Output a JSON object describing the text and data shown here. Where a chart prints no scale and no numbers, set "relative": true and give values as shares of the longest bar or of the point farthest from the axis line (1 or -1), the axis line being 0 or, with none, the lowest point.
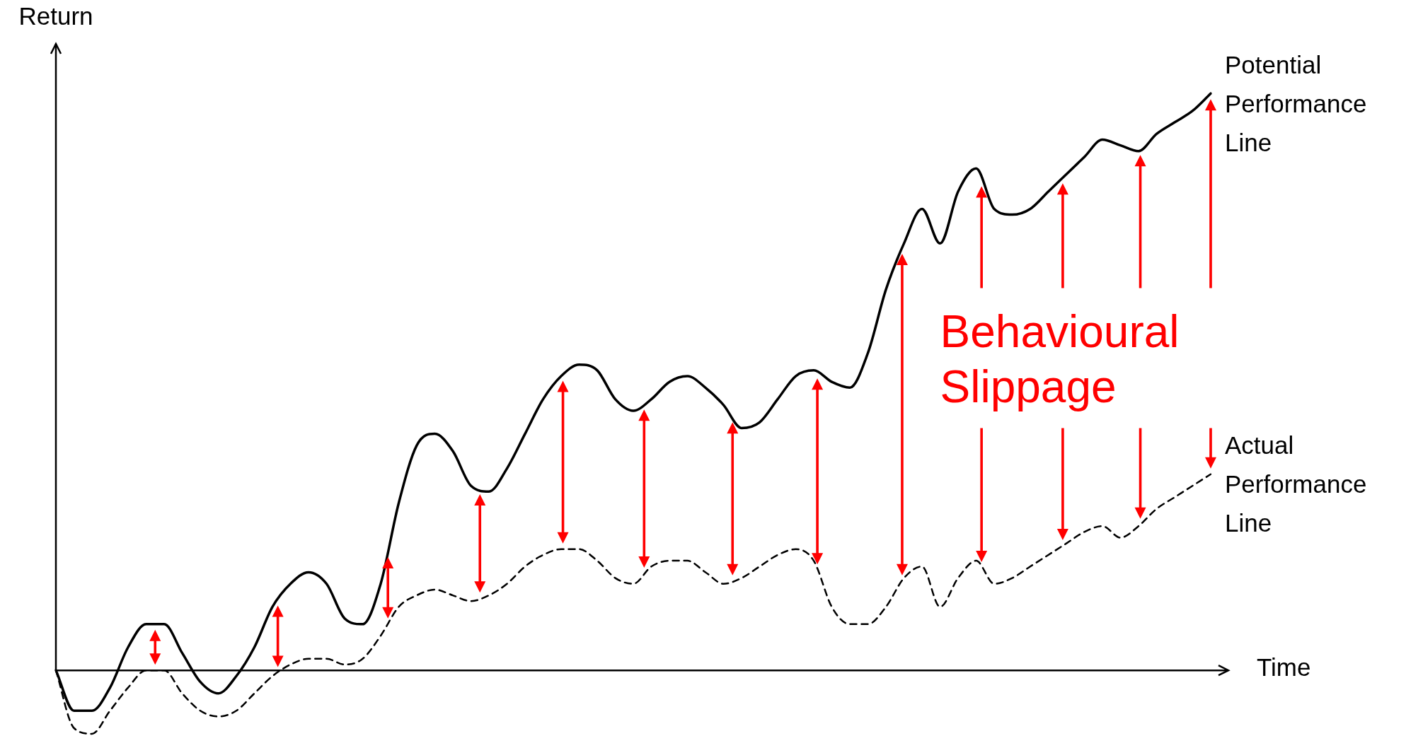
{
  "chart_data": {
    "type": "line",
    "relative": true,
    "xlabel": "Time",
    "ylabel": "Return",
    "marker": "none",
    "categories": [
      null,
      null,
      null,
      null,
      null,
      null,
      null,
      null,
      null,
      null,
      null,
      null,
      null,
      null,
      null,
      null,
      null,
      null,
      null,
      null,
      null,
      null,
      null,
      null,
      null,
      null,
      null,
      null,
      null,
      null,
      null,
      null,
      null,
      null,
      null,
      null,
      null,
      null,
      null,
      null,
      null,
      null,
      null,
      null,
      null,
      null,
      null,
      null,
      null,
      null,
      null,
      null,
      null,
      null,
      null,
      null,
      null,
      null,
      null,
      null,
      null,
      null,
      null,
      null,
      null
    ],
    "series": [
      {
        "name": "Potential Performance Line",
        "color": "#000000",
        "line_style": "solid",
        "values": [
          0,
          -0.07,
          -0.07,
          -0.03,
          0.04,
          0.08,
          0.08,
          0.03,
          -0.02,
          -0.04,
          -0.01,
          0.04,
          0.11,
          0.15,
          0.17,
          0.15,
          0.09,
          0.08,
          0.15,
          0.29,
          0.39,
          0.41,
          0.38,
          0.32,
          0.31,
          0.35,
          0.41,
          0.47,
          0.51,
          0.53,
          0.52,
          0.47,
          0.45,
          0.47,
          0.5,
          0.51,
          0.49,
          0.46,
          0.42,
          0.43,
          0.47,
          0.51,
          0.52,
          0.5,
          0.49,
          0.55,
          0.66,
          0.74,
          0.8,
          0.74,
          0.83,
          0.87,
          0.8,
          0.79,
          0.8,
          0.83,
          0.86,
          0.89,
          0.92,
          0.91,
          0.9,
          0.93,
          0.95,
          0.97,
          1
        ]
      },
      {
        "name": "Actual Performance Line",
        "color": "#000000",
        "line_style": "dashed",
        "values": [
          0,
          -0.1,
          -0.11,
          -0.07,
          -0.03,
          0,
          0,
          -0.04,
          -0.07,
          -0.08,
          -0.07,
          -0.04,
          -0.01,
          0.01,
          0.02,
          0.02,
          0.01,
          0.02,
          0.06,
          0.11,
          0.13,
          0.14,
          0.13,
          0.12,
          0.13,
          0.15,
          0.18,
          0.2,
          0.21,
          0.21,
          0.19,
          0.16,
          0.15,
          0.18,
          0.19,
          0.19,
          0.17,
          0.15,
          0.16,
          0.18,
          0.2,
          0.21,
          0.19,
          0.11,
          0.08,
          0.08,
          0.11,
          0.16,
          0.18,
          0.11,
          0.16,
          0.19,
          0.15,
          0.16,
          0.18,
          0.2,
          0.22,
          0.24,
          0.25,
          0.23,
          0.25,
          0.28,
          0.3,
          0.32,
          0.34
        ]
      }
    ],
    "annotations": [
      "Behavioural Slippage"
    ]
  }
}
